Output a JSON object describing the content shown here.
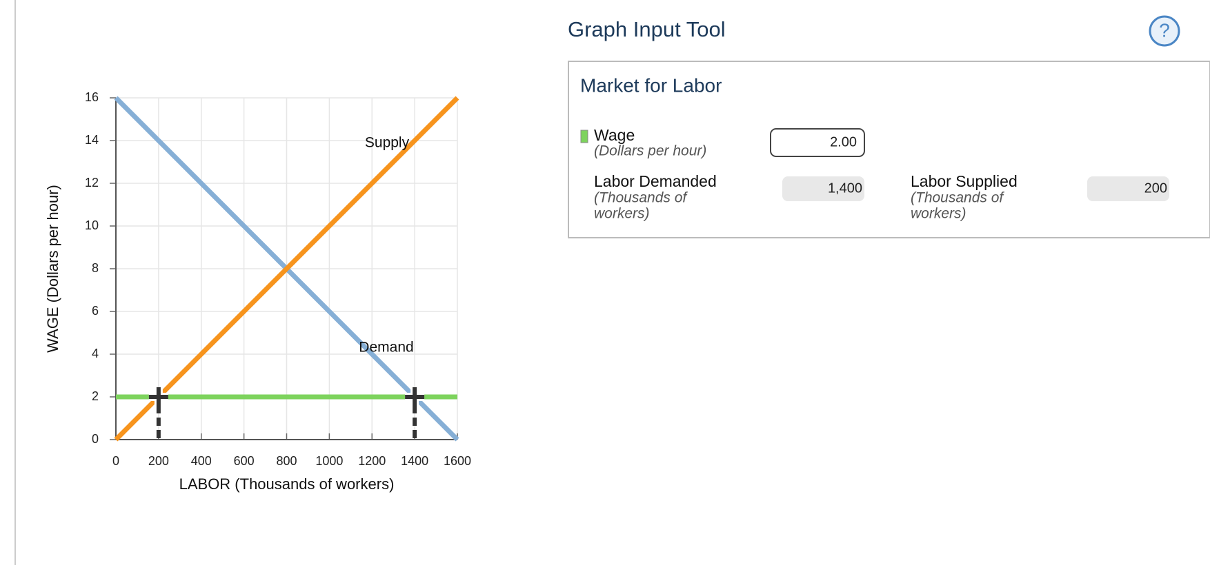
{
  "chart_data": {
    "type": "line",
    "x_label": "LABOR (Thousands of workers)",
    "y_label": "WAGE (Dollars per hour)",
    "xlim": [
      0,
      1600
    ],
    "ylim": [
      0,
      16
    ],
    "xticks": [
      0,
      200,
      400,
      600,
      800,
      1000,
      1200,
      1400,
      1600
    ],
    "yticks": [
      0,
      2,
      4,
      6,
      8,
      10,
      12,
      14,
      16
    ],
    "grid": true,
    "x": [
      0,
      1600
    ],
    "series": [
      {
        "name": "Demand",
        "color": "#86afd6",
        "values": [
          16,
          0
        ]
      },
      {
        "name": "Supply",
        "color": "#f7941d",
        "values": [
          0,
          16
        ]
      }
    ]
  },
  "tool": {
    "title": "Graph Input Tool",
    "help": "?",
    "panel_title": "Market for Labor",
    "wage": {
      "label": "Wage",
      "unit": [
        "(Dollars per hour)"
      ],
      "value": 2,
      "value_label": "2.00",
      "color": "#7dd35d"
    },
    "demanded": {
      "label": "Labor Demanded",
      "unit": [
        "(Thousands of",
        "workers)"
      ],
      "value": 1400,
      "value_label": "1,400"
    },
    "supplied": {
      "label": "Labor Supplied",
      "unit": [
        "(Thousands of",
        "workers)"
      ],
      "value": 200,
      "value_label": "200"
    }
  }
}
